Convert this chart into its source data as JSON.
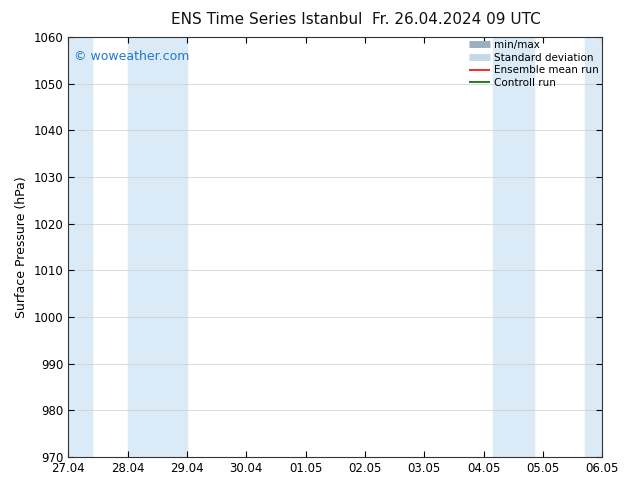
{
  "title": "ENS Time Series Istanbul",
  "title2": "Fr. 26.04.2024 09 UTC",
  "ylabel": "Surface Pressure (hPa)",
  "ylim": [
    970,
    1060
  ],
  "yticks": [
    970,
    980,
    990,
    1000,
    1010,
    1020,
    1030,
    1040,
    1050,
    1060
  ],
  "x_start": 0,
  "x_end": 9,
  "xtick_labels": [
    "27.04",
    "28.04",
    "29.04",
    "30.04",
    "01.05",
    "02.05",
    "03.05",
    "04.05",
    "05.05",
    "06.05"
  ],
  "xtick_positions": [
    0,
    1,
    2,
    3,
    4,
    5,
    6,
    7,
    8,
    9
  ],
  "shaded_bands": [
    {
      "x_start": 0.0,
      "x_end": 0.33,
      "color": "#daeaf7"
    },
    {
      "x_start": 1.0,
      "x_end": 2.0,
      "color": "#daeaf7"
    },
    {
      "x_start": 7.0,
      "x_end": 8.0,
      "color": "#daeaf7"
    },
    {
      "x_start": 9.0,
      "x_end": 9.0,
      "color": "#daeaf7"
    }
  ],
  "watermark": "© woweather.com",
  "watermark_color": "#2277cc",
  "legend_items": [
    {
      "label": "min/max",
      "color": "#9ab0bf",
      "lw": 5,
      "style": "solid"
    },
    {
      "label": "Standard deviation",
      "color": "#c5d8ea",
      "lw": 5,
      "style": "solid"
    },
    {
      "label": "Ensemble mean run",
      "color": "#ff0000",
      "lw": 1.2,
      "style": "solid"
    },
    {
      "label": "Controll run",
      "color": "#006600",
      "lw": 1.2,
      "style": "solid"
    }
  ],
  "bg_color": "#ffffff",
  "plot_bg_color": "#ffffff",
  "grid_color": "#cccccc",
  "title_fontsize": 11,
  "ylabel_fontsize": 9,
  "tick_fontsize": 8.5,
  "watermark_fontsize": 9,
  "legend_fontsize": 7.5
}
